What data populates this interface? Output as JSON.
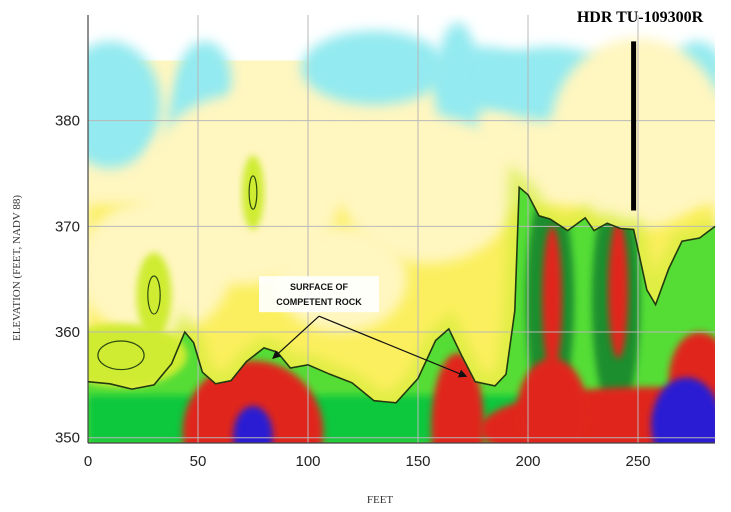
{
  "chart_data": {
    "type": "heatmap",
    "title": "",
    "xlabel": "FEET",
    "ylabel": "ELEVATION (FEET, NADV 88)",
    "xlim": [
      0,
      285
    ],
    "ylim": [
      349.5,
      390
    ],
    "x_ticks": [
      0,
      50,
      100,
      150,
      200,
      250
    ],
    "y_ticks": [
      350,
      360,
      370,
      380
    ],
    "grid": true,
    "borehole": {
      "label": "HDR TU-109300R",
      "x": 248,
      "y_top": 387.5,
      "y_bottom": 371.5
    },
    "annotation": {
      "lines": [
        "SURFACE OF",
        "COMPETENT ROCK"
      ],
      "anchor": {
        "x": 105,
        "y": 361.5
      },
      "targets": [
        {
          "x": 84,
          "y": 357.5
        },
        {
          "x": 172,
          "y": 355.8
        }
      ]
    },
    "rock_surface": [
      [
        0,
        355.3
      ],
      [
        10,
        355.1
      ],
      [
        20,
        354.6
      ],
      [
        30,
        355.0
      ],
      [
        38,
        357.0
      ],
      [
        44,
        360.0
      ],
      [
        48,
        359.0
      ],
      [
        52,
        356.2
      ],
      [
        58,
        355.1
      ],
      [
        65,
        355.4
      ],
      [
        72,
        357.2
      ],
      [
        80,
        358.5
      ],
      [
        86,
        358.1
      ],
      [
        92,
        356.6
      ],
      [
        100,
        356.9
      ],
      [
        110,
        356.0
      ],
      [
        120,
        355.2
      ],
      [
        130,
        353.5
      ],
      [
        140,
        353.3
      ],
      [
        150,
        355.6
      ],
      [
        158,
        359.2
      ],
      [
        164,
        360.3
      ],
      [
        170,
        357.7
      ],
      [
        176,
        355.3
      ],
      [
        185,
        354.9
      ],
      [
        190,
        356.0
      ],
      [
        194,
        362.0
      ],
      [
        196,
        373.7
      ],
      [
        200,
        373.0
      ],
      [
        205,
        371.0
      ],
      [
        210,
        370.7
      ],
      [
        218,
        369.6
      ],
      [
        226,
        370.8
      ],
      [
        230,
        369.6
      ],
      [
        236,
        370.3
      ],
      [
        242,
        369.8
      ],
      [
        248,
        369.7
      ],
      [
        254,
        364.0
      ],
      [
        258,
        362.6
      ],
      [
        264,
        366.0
      ],
      [
        270,
        368.6
      ],
      [
        278,
        368.9
      ],
      [
        285,
        370.0
      ]
    ],
    "color_scale": [
      "#93eaf0",
      "#fff6c0",
      "#fbef5e",
      "#cfec30",
      "#55dd36",
      "#08c73c",
      "#1e8e2e",
      "#8b6a1c",
      "#e0281e",
      "#2a1fd2"
    ],
    "field": {
      "data_top": 385.7,
      "cyan_blobs": [
        [
          10,
          381.5,
          23,
          6
        ],
        [
          50,
          378.5,
          14,
          7
        ],
        [
          53,
          384.0,
          12,
          3.5
        ],
        [
          130,
          385.0,
          33,
          3.5
        ],
        [
          168,
          382.8,
          10,
          6.5
        ],
        [
          180,
          384.0,
          23,
          3
        ],
        [
          210,
          383.5,
          30,
          3.5
        ],
        [
          277,
          384.5,
          12,
          3
        ],
        [
          271,
          379.3,
          7,
          5
        ]
      ],
      "pale_blobs": [
        [
          70,
          373.5,
          45,
          9
        ],
        [
          155,
          373.5,
          40,
          7
        ],
        [
          30,
          366.0,
          35,
          6.5
        ],
        [
          115,
          365.0,
          30,
          5
        ],
        [
          250,
          378.8,
          40,
          9
        ]
      ],
      "green_blobs": [
        [
          30,
          363.5,
          8,
          4
        ],
        [
          75,
          373.2,
          5,
          3.5
        ],
        [
          15,
          357.8,
          30,
          3
        ]
      ],
      "red_lobes": [
        [
          75,
          350.5,
          32,
          6.8
        ],
        [
          168,
          351.0,
          12,
          7
        ],
        [
          253,
          350.8,
          75,
          4
        ],
        [
          211,
          352.5,
          16,
          5
        ],
        [
          278,
          355.5,
          14,
          4.5
        ]
      ],
      "blue_lobes": [
        [
          75,
          350.2,
          9,
          2.8
        ],
        [
          272,
          351.2,
          16,
          4.5
        ]
      ],
      "dark_columns": [
        [
          210,
          363,
          11,
          11
        ],
        [
          240,
          363,
          11,
          11
        ]
      ],
      "red_columns": [
        [
          211,
          363,
          4.5,
          7
        ],
        [
          241,
          364,
          4.5,
          6.5
        ]
      ]
    }
  }
}
